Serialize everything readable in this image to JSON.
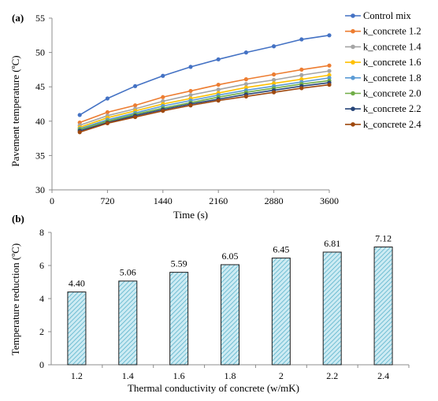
{
  "chart_data": [
    {
      "panel": "(a)",
      "type": "line",
      "xlabel": "Time (s)",
      "ylabel": "Pavement temperature (ºC)",
      "xlim": [
        0,
        3600
      ],
      "ylim": [
        30,
        55
      ],
      "xticks": [
        0,
        720,
        1440,
        2160,
        2880,
        3600
      ],
      "yticks": [
        30,
        35,
        40,
        45,
        50,
        55
      ],
      "grid": "none",
      "legend": "right",
      "x": [
        360,
        720,
        1080,
        1440,
        1800,
        2160,
        2520,
        2880,
        3240,
        3600
      ],
      "series": [
        {
          "name": "Control mix",
          "color": "#4472C4",
          "values": [
            40.9,
            43.3,
            45.1,
            46.6,
            47.9,
            49.0,
            50.0,
            50.9,
            51.9,
            52.5
          ]
        },
        {
          "name": "k_concrete 1.2",
          "color": "#ED7D31",
          "values": [
            39.8,
            41.3,
            42.3,
            43.5,
            44.4,
            45.3,
            46.1,
            46.8,
            47.5,
            48.1
          ]
        },
        {
          "name": "k_concrete 1.4",
          "color": "#A5A5A5",
          "values": [
            39.4,
            40.8,
            41.8,
            42.9,
            43.8,
            44.6,
            45.4,
            46.0,
            46.7,
            47.3
          ]
        },
        {
          "name": "k_concrete 1.6",
          "color": "#FFC000",
          "values": [
            39.1,
            40.5,
            41.5,
            42.5,
            43.3,
            44.1,
            44.9,
            45.5,
            46.1,
            46.7
          ]
        },
        {
          "name": "k_concrete 1.8",
          "color": "#5B9BD5",
          "values": [
            38.9,
            40.2,
            41.2,
            42.2,
            43.0,
            43.8,
            44.5,
            45.1,
            45.7,
            46.3
          ]
        },
        {
          "name": "k_concrete 2.0",
          "color": "#70AD47",
          "values": [
            38.8,
            40.0,
            41.0,
            41.9,
            42.7,
            43.5,
            44.2,
            44.8,
            45.4,
            45.9
          ]
        },
        {
          "name": "k_concrete 2.2",
          "color": "#264478",
          "values": [
            38.6,
            39.8,
            40.8,
            41.7,
            42.5,
            43.2,
            43.9,
            44.5,
            45.1,
            45.6
          ]
        },
        {
          "name": "k_concrete 2.4",
          "color": "#9E480E",
          "values": [
            38.4,
            39.7,
            40.6,
            41.5,
            42.3,
            43.0,
            43.6,
            44.2,
            44.8,
            45.3
          ]
        }
      ]
    },
    {
      "panel": "(b)",
      "type": "bar",
      "xlabel": "Thermal conductivity of concrete (w/mK)",
      "ylabel": "Temperature reduction (ºC)",
      "ylim": [
        0,
        8
      ],
      "yticks": [
        0,
        2,
        4,
        6,
        8
      ],
      "grid": "none",
      "bar_fill": "#CDEBF3",
      "bar_hatch": "#4BACC6",
      "bar_edge": "#1F1F1F",
      "categories": [
        "1.2",
        "1.4",
        "1.6",
        "1.8",
        "2",
        "2.2",
        "2.4"
      ],
      "values": [
        4.4,
        5.06,
        5.59,
        6.05,
        6.45,
        6.81,
        7.12
      ],
      "labels": [
        "4.40",
        "5.06",
        "5.59",
        "6.05",
        "6.45",
        "6.81",
        "7.12"
      ]
    }
  ]
}
